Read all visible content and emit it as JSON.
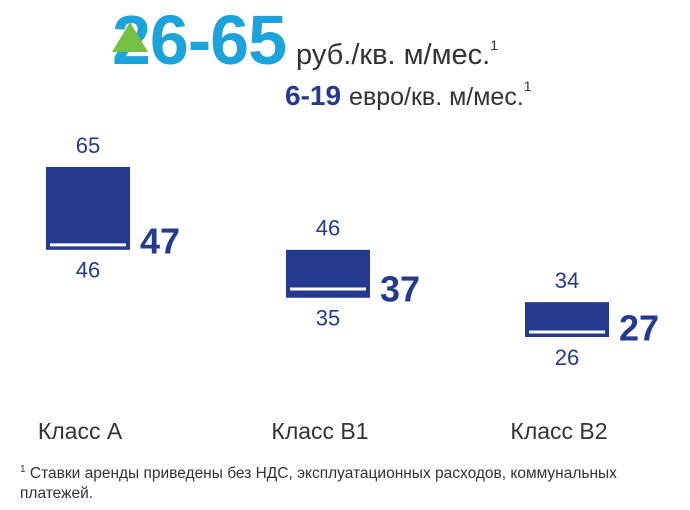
{
  "chart_data": {
    "type": "range",
    "title": "26-65",
    "title_unit": "руб./кв. м/мес.",
    "title_note": "1",
    "subtitle": "6-19",
    "subtitle_unit": "евро/кв. м/мес.",
    "subtitle_note": "1",
    "categories": [
      "Класс А",
      "Класс В1",
      "Класс В2"
    ],
    "max": [
      65,
      46,
      34
    ],
    "min": [
      46,
      35,
      26
    ],
    "average": [
      47,
      37,
      27
    ],
    "color": "#233a8f",
    "footnote_mark": "1",
    "footnote": "Ставки аренды приведены без НДС, эксплуатационных расходов, коммунальных платежей."
  }
}
